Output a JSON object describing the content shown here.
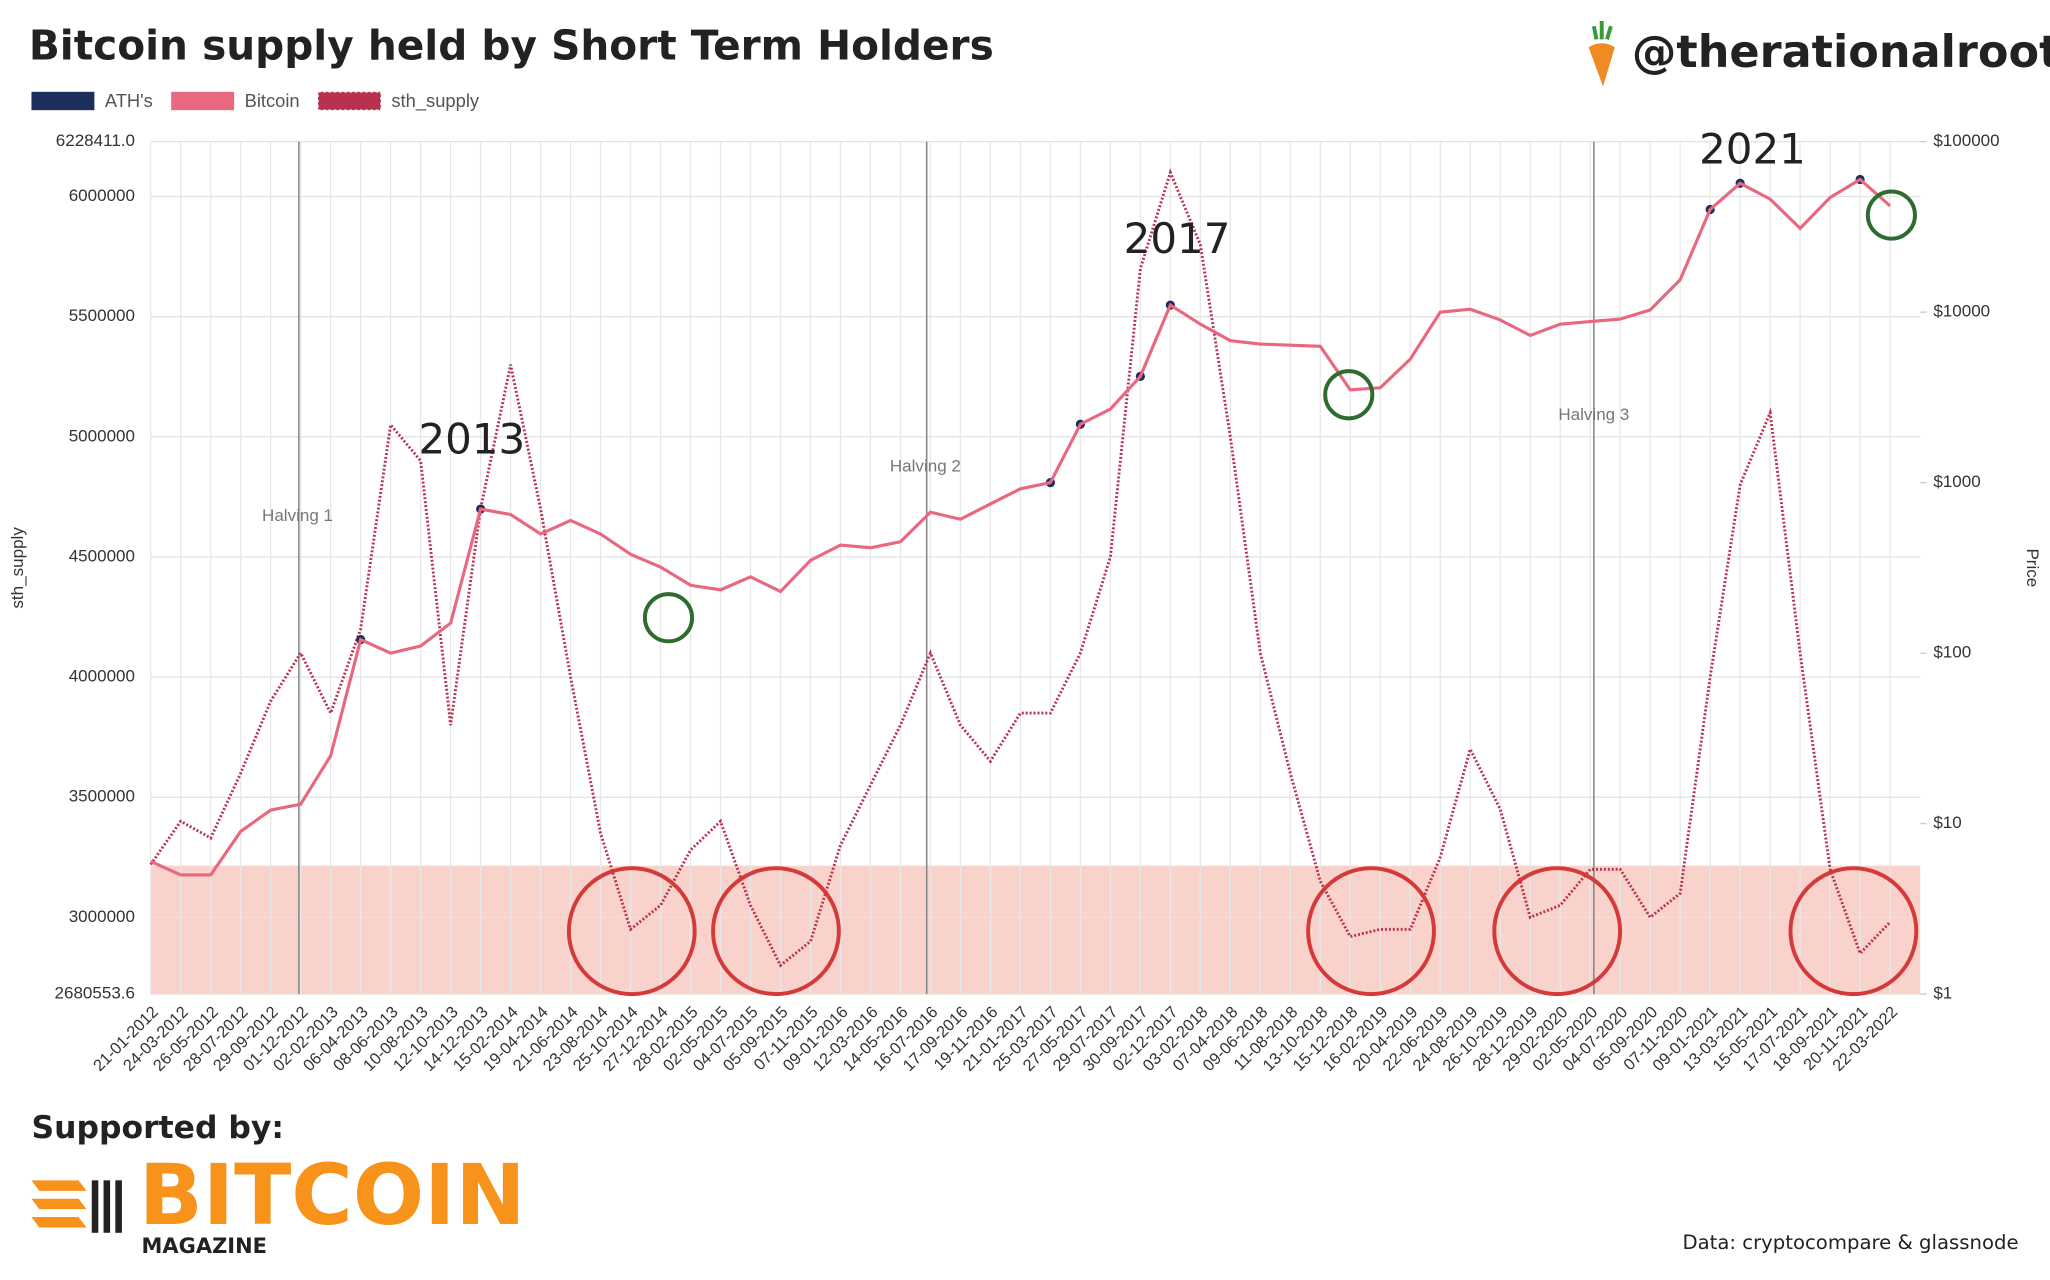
{
  "chart_data": {
    "type": "line",
    "title": "Bitcoin supply held by Short Term Holders",
    "handle": "@therationalroot",
    "y_label": "sth_supply",
    "y2_label": "Price",
    "annotations": [
      "2013",
      "2017",
      "2021"
    ],
    "halvings": [
      "Halving 1",
      "Halving 2",
      "Halving 3"
    ],
    "categories": [
      "21-01-2012",
      "24-03-2012",
      "26-05-2012",
      "28-07-2012",
      "29-09-2012",
      "01-12-2012",
      "02-02-2013",
      "06-04-2013",
      "08-06-2013",
      "10-08-2013",
      "12-10-2013",
      "14-12-2013",
      "15-02-2014",
      "19-04-2014",
      "21-06-2014",
      "23-08-2014",
      "25-10-2014",
      "27-12-2014",
      "28-02-2015",
      "02-05-2015",
      "04-07-2015",
      "05-09-2015",
      "07-11-2015",
      "09-01-2016",
      "12-03-2016",
      "14-05-2016",
      "16-07-2016",
      "17-09-2016",
      "19-11-2016",
      "21-01-2017",
      "25-03-2017",
      "27-05-2017",
      "29-07-2017",
      "30-09-2017",
      "02-12-2017",
      "03-02-2018",
      "07-04-2018",
      "09-06-2018",
      "11-08-2018",
      "13-10-2018",
      "15-12-2018",
      "16-02-2019",
      "20-04-2019",
      "22-06-2019",
      "24-08-2019",
      "26-10-2019",
      "28-12-2019",
      "29-02-2020",
      "02-05-2020",
      "04-07-2020",
      "05-09-2020",
      "07-11-2020",
      "09-01-2021",
      "13-03-2021",
      "15-05-2021",
      "17-07-2021",
      "18-09-2021",
      "20-11-2021",
      "22-03-2022"
    ],
    "series": [
      {
        "name": "ATH's",
        "color": "#1c2e5a",
        "axis": "y2",
        "style": "dots",
        "values": [
          null,
          null,
          null,
          null,
          null,
          null,
          null,
          120,
          null,
          null,
          null,
          700,
          null,
          null,
          null,
          null,
          null,
          null,
          null,
          null,
          null,
          null,
          null,
          null,
          null,
          null,
          null,
          null,
          null,
          null,
          1000,
          2200,
          null,
          4200,
          11000,
          null,
          null,
          null,
          null,
          null,
          null,
          null,
          null,
          null,
          null,
          null,
          null,
          null,
          null,
          null,
          null,
          null,
          40000,
          57000,
          null,
          null,
          null,
          60000,
          null
        ]
      },
      {
        "name": "Bitcoin",
        "color": "#e8687f",
        "axis": "y2",
        "style": "solid",
        "values": [
          6,
          5,
          5,
          9,
          12,
          13,
          25,
          120,
          100,
          110,
          150,
          700,
          650,
          500,
          600,
          500,
          380,
          320,
          250,
          235,
          280,
          230,
          350,
          430,
          415,
          450,
          670,
          610,
          750,
          920,
          1000,
          2200,
          2700,
          4200,
          11000,
          8500,
          6800,
          6500,
          6400,
          6300,
          3500,
          3600,
          5300,
          10000,
          10400,
          9000,
          7300,
          8500,
          8800,
          9100,
          10300,
          15500,
          40000,
          57000,
          46000,
          31000,
          47000,
          60000,
          42000
        ]
      },
      {
        "name": "sth_supply",
        "color": "#b83250",
        "axis": "y",
        "style": "dotted",
        "values": [
          3220000,
          3400000,
          3330000,
          3600000,
          3900000,
          4100000,
          3850000,
          4200000,
          5050000,
          4900000,
          3800000,
          4700000,
          5300000,
          4700000,
          4000000,
          3350000,
          2950000,
          3050000,
          3280000,
          3400000,
          3050000,
          2800000,
          2900000,
          3300000,
          3550000,
          3800000,
          4100000,
          3800000,
          3650000,
          3850000,
          3850000,
          4100000,
          4500000,
          5700000,
          6100000,
          5800000,
          5000000,
          4100000,
          3600000,
          3150000,
          2920000,
          2950000,
          2950000,
          3250000,
          3700000,
          3450000,
          3000000,
          3050000,
          3200000,
          3200000,
          3000000,
          3100000,
          4000000,
          4800000,
          5100000,
          4100000,
          3200000,
          2850000,
          2980000
        ]
      }
    ],
    "ylim": [
      2680553.6,
      6228411.0
    ],
    "yticks": [
      2680553.6,
      3000000,
      3500000,
      4000000,
      4500000,
      5000000,
      5500000,
      6000000,
      {
        "value": 6228411.0,
        "label": "6228411.0"
      }
    ],
    "y2lim": [
      1,
      100000
    ],
    "y2_log": true,
    "y2ticks": [
      {
        "value": 1,
        "label": "$1"
      },
      {
        "value": 10,
        "label": "$10"
      },
      {
        "value": 100,
        "label": "$100"
      },
      {
        "value": 1000,
        "label": "$1000"
      },
      {
        "value": 10000,
        "label": "$10000"
      },
      {
        "value": 100000,
        "label": "$100000"
      }
    ],
    "grid": true,
    "highlight": {
      "range": [
        2680553.6,
        3215000
      ],
      "color": "#f5b5a8"
    },
    "sponsor": {
      "intro": "Supported by:",
      "name": "BITCOIN",
      "sub": "MAGAZINE"
    },
    "source": "Data: cryptocompare & glassnode"
  }
}
